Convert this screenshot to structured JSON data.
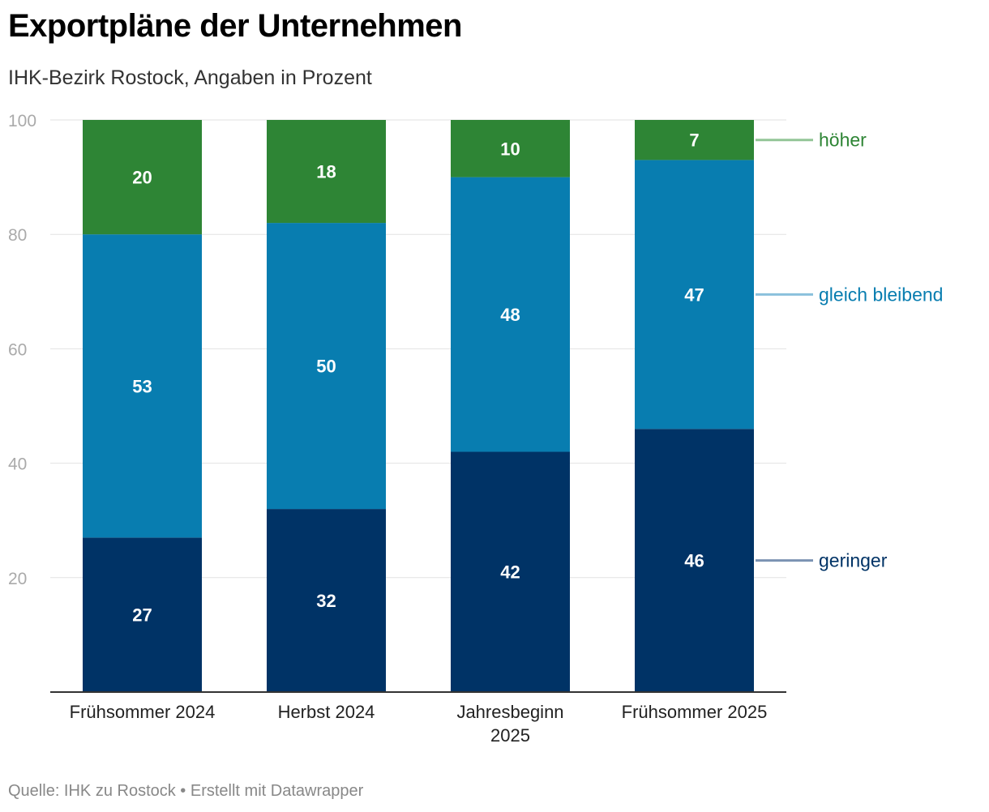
{
  "header": {
    "title": "Exportpläne der Unternehmen",
    "subtitle": "IHK-Bezirk Rostock, Angaben in Prozent"
  },
  "footer": {
    "source": "Quelle: IHK zu Rostock • Erstellt mit Datawrapper"
  },
  "chart_data": {
    "type": "bar",
    "stacked": true,
    "title": "Exportpläne der Unternehmen",
    "subtitle": "IHK-Bezirk Rostock, Angaben in Prozent",
    "categories": [
      [
        "Frühsommer 2024"
      ],
      [
        "Herbst 2024"
      ],
      [
        "Jahresbeginn",
        "2025"
      ],
      [
        "Frühsommer 2025"
      ]
    ],
    "series": [
      {
        "name": "geringer",
        "color": "#003366",
        "label_color": "#003366",
        "values": [
          27,
          32,
          42,
          46
        ]
      },
      {
        "name": "gleich bleibend",
        "color": "#087db0",
        "label_color": "#087db0",
        "values": [
          53,
          50,
          48,
          47
        ]
      },
      {
        "name": "höher",
        "color": "#2e8535",
        "label_color": "#2e8535",
        "values": [
          20,
          18,
          10,
          7
        ]
      }
    ],
    "ylim": [
      0,
      100
    ],
    "yticks": [
      20,
      40,
      60,
      80,
      100
    ],
    "grid": true,
    "legend": "right, direct labels"
  }
}
